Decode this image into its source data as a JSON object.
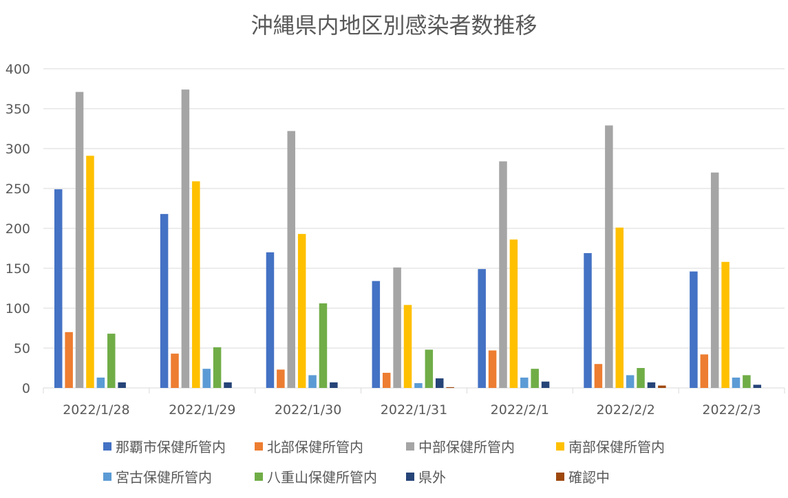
{
  "chart_data": {
    "type": "bar",
    "title": "沖縄県内地区別感染者数推移",
    "xlabel": "",
    "ylabel": "",
    "ylim": [
      0,
      400
    ],
    "yticks": [
      0,
      50,
      100,
      150,
      200,
      250,
      300,
      350,
      400
    ],
    "grid": true,
    "legend_position": "bottom",
    "categories": [
      "2022/1/28",
      "2022/1/29",
      "2022/1/30",
      "2022/1/31",
      "2022/2/1",
      "2022/2/2",
      "2022/2/3"
    ],
    "series": [
      {
        "name": "那覇市保健所管内",
        "color": "#4472C4",
        "values": [
          249,
          218,
          170,
          134,
          149,
          169,
          146
        ]
      },
      {
        "name": "北部保健所管内",
        "color": "#ED7D31",
        "values": [
          70,
          43,
          23,
          19,
          47,
          30,
          42
        ]
      },
      {
        "name": "中部保健所管内",
        "color": "#A5A5A5",
        "values": [
          371,
          374,
          322,
          151,
          284,
          329,
          270
        ]
      },
      {
        "name": "南部保健所管内",
        "color": "#FFC000",
        "values": [
          291,
          259,
          193,
          104,
          186,
          201,
          158
        ]
      },
      {
        "name": "宮古保健所管内",
        "color": "#5B9BD5",
        "values": [
          13,
          24,
          16,
          6,
          13,
          16,
          13
        ]
      },
      {
        "name": "八重山保健所管内",
        "color": "#70AD47",
        "values": [
          68,
          51,
          106,
          48,
          24,
          25,
          16
        ]
      },
      {
        "name": "県外",
        "color": "#264478",
        "values": [
          7,
          7,
          7,
          12,
          8,
          7,
          4
        ]
      },
      {
        "name": "確認中",
        "color": "#9E480E",
        "values": [
          0,
          0,
          0,
          1,
          0,
          3,
          0
        ]
      }
    ]
  }
}
